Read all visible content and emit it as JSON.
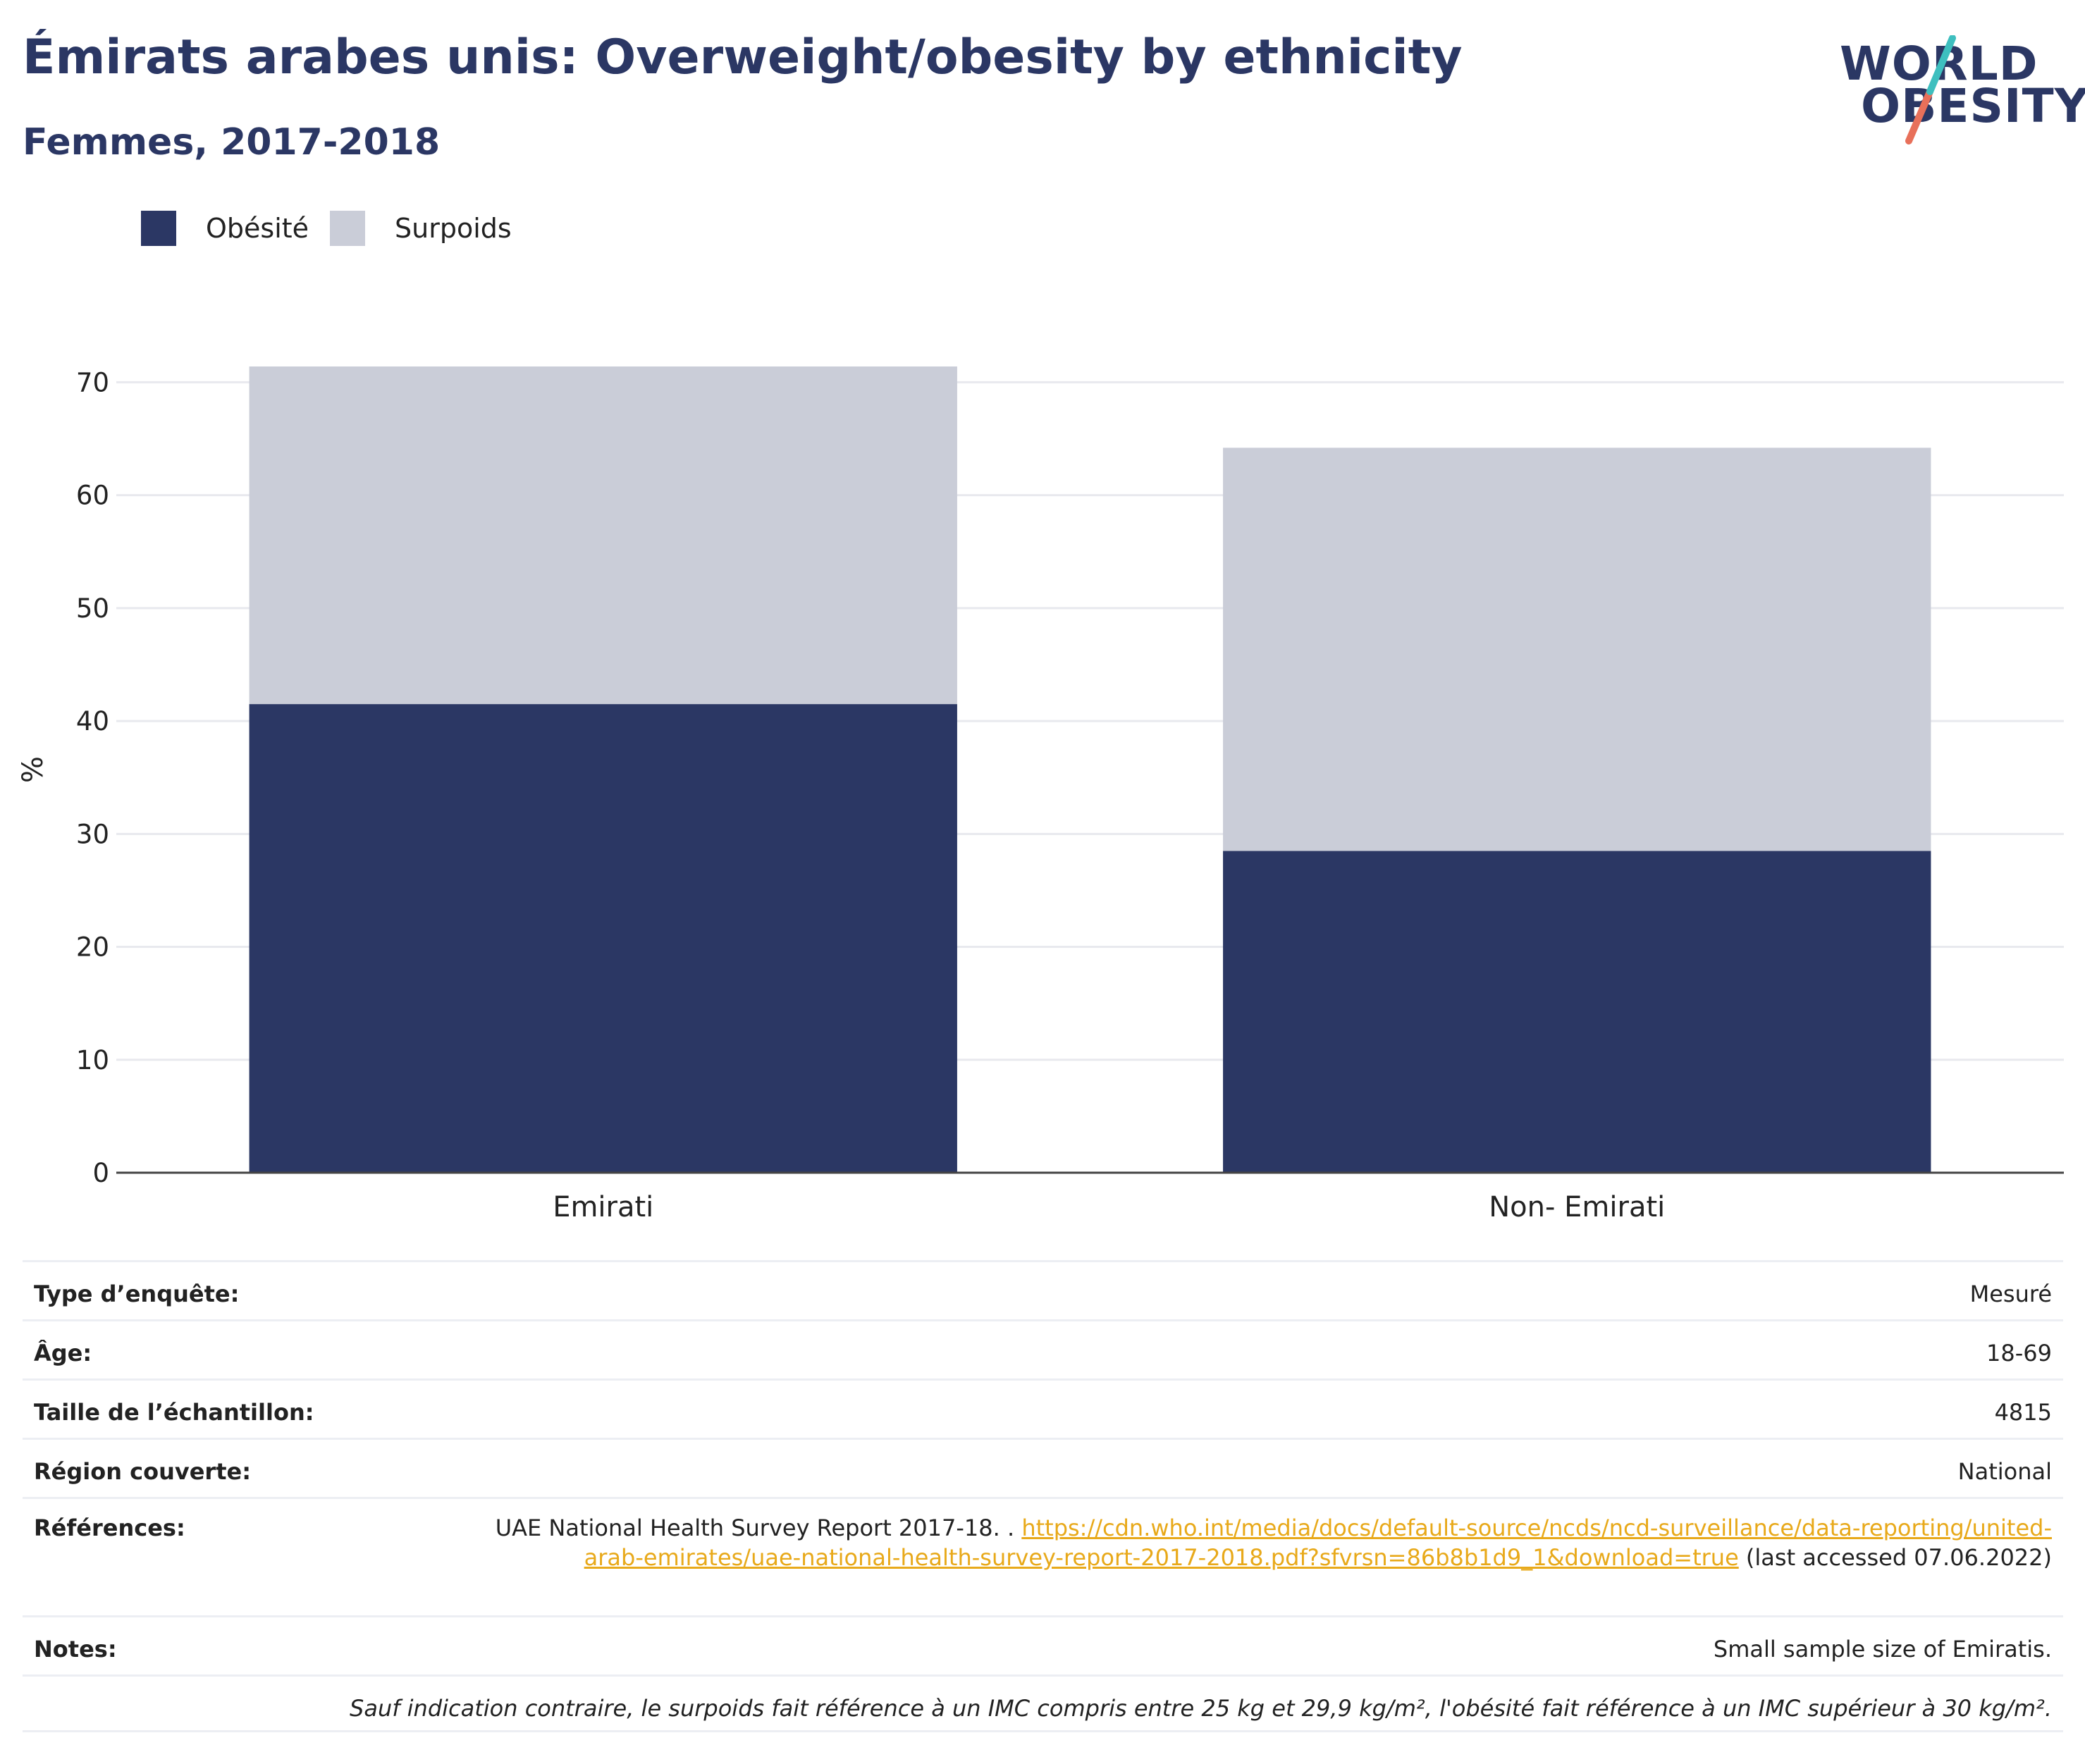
{
  "header": {
    "title": "Émirats arabes unis: Overweight/obesity by ethnicity",
    "subtitle": "Femmes, 2017-2018"
  },
  "logo": {
    "line1": "WORLD",
    "line2": "OBESITY"
  },
  "colors": {
    "obesity": "#2b3764",
    "overweight": "#cacdd8",
    "accent_teal": "#3ebfbf",
    "accent_coral": "#e8705a",
    "link": "#e8a91a"
  },
  "chart_data": {
    "type": "bar",
    "stacked": true,
    "categories": [
      "Emirati",
      "Non- Emirati"
    ],
    "series": [
      {
        "name": "Obésité",
        "values": [
          41.5,
          28.5
        ]
      },
      {
        "name": "Surpoids",
        "values": [
          29.9,
          35.7
        ]
      }
    ],
    "ylabel": "%",
    "ylim": [
      0,
      70
    ],
    "yticks": [
      0,
      10,
      20,
      30,
      40,
      50,
      60,
      70
    ],
    "grid": true,
    "legend_position": "top-left"
  },
  "info": {
    "rows": [
      {
        "label": "Type d’enquête:",
        "value": "Mesuré"
      },
      {
        "label": "Âge:",
        "value": "18-69"
      },
      {
        "label": "Taille de l’échantillon:",
        "value": "4815"
      },
      {
        "label": "Région couverte:",
        "value": "National"
      }
    ],
    "references_label": "Références:",
    "references_text": "UAE National Health Survey Report 2017-18. .",
    "references_link": "https://cdn.who.int/media/docs/default-source/ncds/ncd-surveillance/data-reporting/united-arab-emirates/uae-national-health-survey-report-2017-2018.pdf?sfvrsn=86b8b1d9_1&download=true",
    "references_suffix": "(last accessed 07.06.2022)",
    "notes_label": "Notes:",
    "notes_value": "Small sample size of Emiratis.",
    "footnote": "Sauf indication contraire, le surpoids fait référence à un IMC compris entre 25 kg et 29,9 kg/m², l'obésité fait référence à un IMC supérieur à 30 kg/m²."
  }
}
